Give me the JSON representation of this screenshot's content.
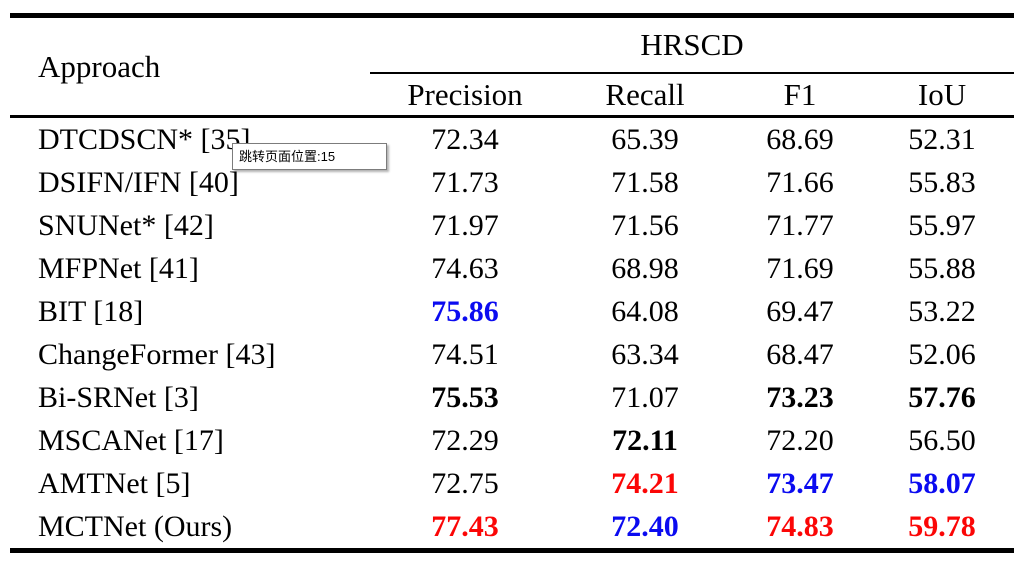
{
  "colors": {
    "best": "#fb0606",
    "second": "#0b0bf0",
    "text": "#000000"
  },
  "tooltip": {
    "text": "跳转页面位置:15"
  },
  "table": {
    "approach_header": "Approach",
    "group_header": "HRSCD",
    "columns": [
      "Precision",
      "Recall",
      "F1",
      "IoU"
    ],
    "rows": [
      {
        "approach": "DTCDSCN* [35]",
        "link": true,
        "values": [
          "72.34",
          "65.39",
          "68.69",
          "52.31"
        ],
        "styles": [
          "normal",
          "normal",
          "normal",
          "normal"
        ]
      },
      {
        "approach": "DSIFN/IFN [40]",
        "link": false,
        "values": [
          "71.73",
          "71.58",
          "71.66",
          "55.83"
        ],
        "styles": [
          "normal",
          "normal",
          "normal",
          "normal"
        ]
      },
      {
        "approach": "SNUNet* [42]",
        "link": false,
        "values": [
          "71.97",
          "71.56",
          "71.77",
          "55.97"
        ],
        "styles": [
          "normal",
          "normal",
          "normal",
          "normal"
        ]
      },
      {
        "approach": "MFPNet [41]",
        "link": false,
        "values": [
          "74.63",
          "68.98",
          "71.69",
          "55.88"
        ],
        "styles": [
          "normal",
          "normal",
          "normal",
          "normal"
        ]
      },
      {
        "approach": "BIT [18]",
        "link": false,
        "values": [
          "75.86",
          "64.08",
          "69.47",
          "53.22"
        ],
        "styles": [
          "second",
          "normal",
          "normal",
          "normal"
        ]
      },
      {
        "approach": "ChangeFormer [43]",
        "link": false,
        "values": [
          "74.51",
          "63.34",
          "68.47",
          "52.06"
        ],
        "styles": [
          "normal",
          "normal",
          "normal",
          "normal"
        ]
      },
      {
        "approach": "Bi-SRNet [3]",
        "link": false,
        "values": [
          "75.53",
          "71.07",
          "73.23",
          "57.76"
        ],
        "styles": [
          "bold",
          "normal",
          "bold",
          "bold"
        ]
      },
      {
        "approach": "MSCANet [17]",
        "link": false,
        "values": [
          "72.29",
          "72.11",
          "72.20",
          "56.50"
        ],
        "styles": [
          "normal",
          "bold",
          "normal",
          "normal"
        ]
      },
      {
        "approach": "AMTNet [5]",
        "link": false,
        "values": [
          "72.75",
          "74.21",
          "73.47",
          "58.07"
        ],
        "styles": [
          "normal",
          "best",
          "second",
          "second"
        ]
      },
      {
        "approach": "MCTNet (Ours)",
        "link": false,
        "values": [
          "77.43",
          "72.40",
          "74.83",
          "59.78"
        ],
        "styles": [
          "best",
          "second",
          "best",
          "best"
        ]
      }
    ]
  }
}
